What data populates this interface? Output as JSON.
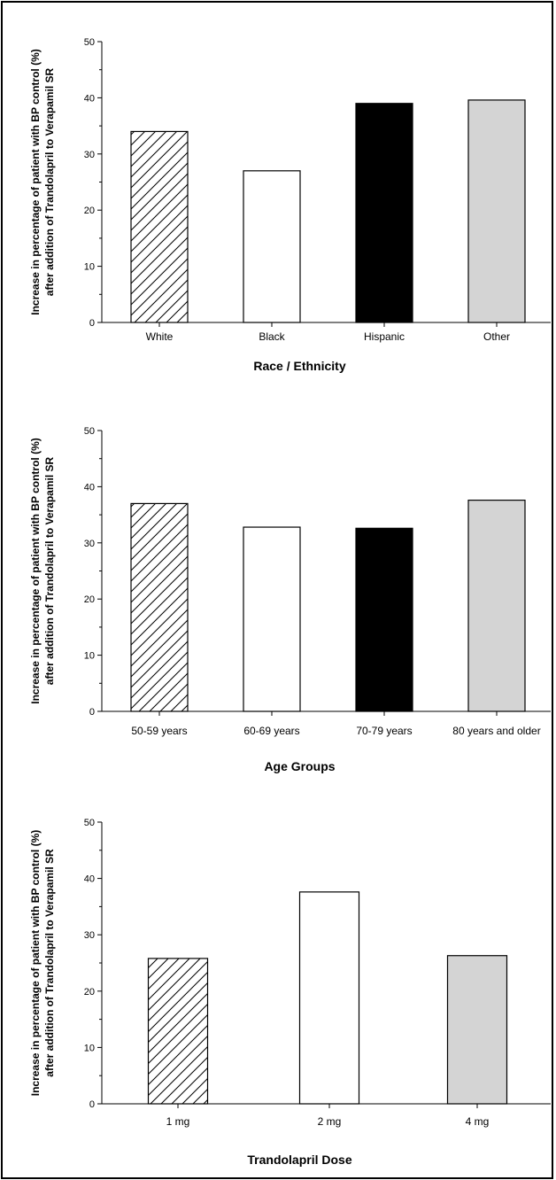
{
  "chart_data": [
    {
      "type": "bar",
      "categories": [
        "White",
        "Black",
        "Hispanic",
        "Other"
      ],
      "values": [
        34,
        27,
        39,
        39.6
      ],
      "xlabel": "Race / Ethnicity",
      "ylabel": [
        "Increase in percentage of patient with BP control (%)",
        "after addition of Trandolapril to Verapamil SR"
      ],
      "ylim": [
        0,
        50
      ],
      "yticks": [
        0,
        10,
        20,
        30,
        40,
        50
      ],
      "bar_styles": [
        "hatch",
        "white",
        "black",
        "gray"
      ],
      "grid": false
    },
    {
      "type": "bar",
      "categories": [
        "50-59 years",
        "60-69 years",
        "70-79 years",
        "80 years and older"
      ],
      "values": [
        37,
        32.8,
        32.6,
        37.6
      ],
      "xlabel": "Age Groups",
      "ylabel": [
        "Increase in percentage of patient with BP control (%)",
        "after addition of Trandolapril to Verapamil SR"
      ],
      "ylim": [
        0,
        50
      ],
      "yticks": [
        0,
        10,
        20,
        30,
        40,
        50
      ],
      "bar_styles": [
        "hatch",
        "white",
        "black",
        "gray"
      ],
      "grid": false
    },
    {
      "type": "bar",
      "categories": [
        "1 mg",
        "2 mg",
        "4 mg"
      ],
      "values": [
        25.8,
        37.6,
        26.3
      ],
      "xlabel": "Trandolapril Dose",
      "ylabel": [
        "Increase in percentage of patient with BP control (%)",
        "after addition of Trandolapril to Verapamil SR"
      ],
      "ylim": [
        0,
        50
      ],
      "yticks": [
        0,
        10,
        20,
        30,
        40,
        50
      ],
      "bar_styles": [
        "hatch",
        "white",
        "gray"
      ],
      "grid": false
    }
  ],
  "colors": {
    "black": "#000000",
    "gray": "#d4d4d4",
    "white": "#ffffff"
  }
}
